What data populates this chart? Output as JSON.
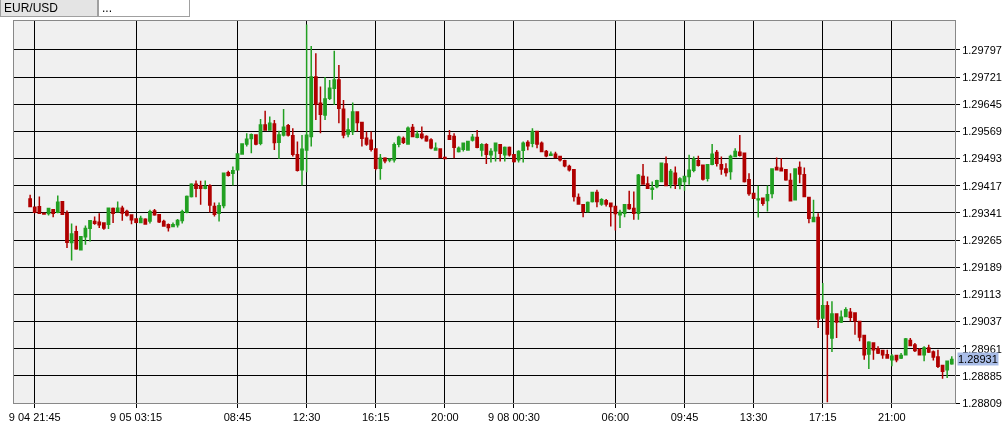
{
  "chart_data": {
    "type": "candlestick",
    "title": "EUR/USD",
    "subtitle": "...",
    "categories": [
      null,
      "9 04 21:45",
      null,
      null,
      null,
      null,
      null,
      null,
      null,
      null,
      null,
      null,
      null,
      null,
      null,
      null,
      null,
      null,
      null,
      null,
      null,
      null,
      null,
      "9 05 03:15",
      null,
      null,
      null,
      null,
      null,
      null,
      null,
      null,
      null,
      null,
      null,
      null,
      null,
      null,
      null,
      null,
      null,
      null,
      null,
      null,
      null,
      "08:45",
      null,
      null,
      null,
      null,
      null,
      null,
      null,
      null,
      null,
      null,
      null,
      null,
      null,
      null,
      "12:30",
      null,
      null,
      null,
      null,
      null,
      null,
      null,
      null,
      null,
      null,
      null,
      null,
      null,
      null,
      "16:15",
      null,
      null,
      null,
      null,
      null,
      null,
      null,
      null,
      null,
      null,
      null,
      null,
      null,
      null,
      "20:00",
      null,
      null,
      null,
      null,
      null,
      null,
      null,
      null,
      null,
      null,
      null,
      null,
      null,
      null,
      "9 08 00:30",
      null,
      null,
      null,
      null,
      null,
      null,
      null,
      null,
      null,
      null,
      null,
      null,
      null,
      null,
      null,
      null,
      null,
      null,
      null,
      null,
      null,
      "06:00",
      null,
      null,
      null,
      null,
      null,
      null,
      null,
      null,
      null,
      null,
      null,
      null,
      null,
      null,
      "09:45",
      null,
      null,
      null,
      null,
      null,
      null,
      null,
      null,
      null,
      null,
      null,
      null,
      null,
      null,
      "13:30",
      null,
      null,
      null,
      null,
      null,
      null,
      null,
      null,
      null,
      null,
      null,
      null,
      null,
      null,
      "17:15",
      null,
      null,
      null,
      null,
      null,
      null,
      null,
      null,
      null,
      null,
      null,
      null,
      null,
      null,
      "21:00",
      null,
      null,
      null,
      null,
      null,
      null,
      null,
      null,
      null,
      null,
      null,
      null,
      null
    ],
    "ohlc": [
      [
        1.2938,
        1.29392,
        1.29357,
        1.29359
      ],
      [
        1.29357,
        1.29357,
        1.2934,
        1.29343
      ],
      [
        1.29358,
        1.29387,
        1.2934,
        1.2934
      ],
      [
        1.2934,
        1.2934,
        1.29338,
        1.29338
      ],
      [
        1.29339,
        1.29354,
        1.29334,
        1.29353
      ],
      [
        1.2935,
        1.29352,
        1.29329,
        1.2934
      ],
      [
        1.29343,
        1.2939,
        1.2934,
        1.29371
      ],
      [
        1.29372,
        1.29372,
        1.29335,
        1.29337
      ],
      [
        1.2934,
        1.29348,
        1.29243,
        1.29259
      ],
      [
        1.29258,
        1.29311,
        1.29208,
        1.29282
      ],
      [
        1.29288,
        1.29305,
        1.29238,
        1.29241
      ],
      [
        1.29238,
        1.29276,
        1.29236,
        1.29274
      ],
      [
        1.29274,
        1.29306,
        1.29252,
        1.29297
      ],
      [
        1.29298,
        1.29321,
        1.29261,
        1.29319
      ],
      [
        1.29317,
        1.29331,
        1.29308,
        1.29312
      ],
      [
        1.29315,
        1.2934,
        1.29299,
        1.29308
      ],
      [
        1.29313,
        1.29313,
        1.29294,
        1.29299
      ],
      [
        1.29309,
        1.29354,
        1.29296,
        1.29354
      ],
      [
        1.29353,
        1.29356,
        1.29313,
        1.2934
      ],
      [
        1.29344,
        1.29373,
        1.29342,
        1.29354
      ],
      [
        1.29354,
        1.29361,
        1.29319,
        1.29341
      ],
      [
        1.29345,
        1.2935,
        1.29331,
        1.29335
      ],
      [
        1.29335,
        1.29335,
        1.29309,
        1.29322
      ],
      [
        1.29324,
        1.29326,
        1.29312,
        1.29315
      ],
      [
        1.29314,
        1.29333,
        1.29312,
        1.29325
      ],
      [
        1.29323,
        1.29326,
        1.29308,
        1.2931
      ],
      [
        1.29318,
        1.2935,
        1.29311,
        1.29344
      ],
      [
        1.29346,
        1.29352,
        1.29333,
        1.29336
      ],
      [
        1.29336,
        1.29336,
        1.29313,
        1.29316
      ],
      [
        1.29317,
        1.29322,
        1.29303,
        1.29304
      ],
      [
        1.29308,
        1.29311,
        1.29289,
        1.293
      ],
      [
        1.29303,
        1.29314,
        1.29302,
        1.29308
      ],
      [
        1.29308,
        1.29324,
        1.293,
        1.2932
      ],
      [
        1.2932,
        1.2935,
        1.29311,
        1.29344
      ],
      [
        1.29343,
        1.2939,
        1.2934,
        1.29387
      ],
      [
        1.29387,
        1.29424,
        1.29384,
        1.29421
      ],
      [
        1.29421,
        1.29432,
        1.29385,
        1.2941
      ],
      [
        1.29417,
        1.29431,
        1.29364,
        1.2941
      ],
      [
        1.2941,
        1.29432,
        1.29407,
        1.29415
      ],
      [
        1.29417,
        1.29421,
        1.29342,
        1.29363
      ],
      [
        1.29359,
        1.2937,
        1.29331,
        1.29337
      ],
      [
        1.2934,
        1.2937,
        1.29317,
        1.29361
      ],
      [
        1.29362,
        1.29454,
        1.29354,
        1.29452
      ],
      [
        1.29453,
        1.29459,
        1.29443,
        1.29446
      ],
      [
        1.29452,
        1.29471,
        1.29418,
        1.29459
      ],
      [
        1.29462,
        1.29508,
        1.29462,
        1.29506
      ],
      [
        1.29506,
        1.29536,
        1.29504,
        1.29534
      ],
      [
        1.29534,
        1.29564,
        1.29527,
        1.29547
      ],
      [
        1.29549,
        1.29563,
        1.29508,
        1.2956
      ],
      [
        1.29559,
        1.29559,
        1.2953,
        1.29534
      ],
      [
        1.29536,
        1.29604,
        1.2953,
        1.29587
      ],
      [
        1.29587,
        1.29627,
        1.29571,
        1.29573
      ],
      [
        1.29573,
        1.29611,
        1.29571,
        1.29592
      ],
      [
        1.2959,
        1.29601,
        1.29517,
        1.29538
      ],
      [
        1.29539,
        1.29571,
        1.29492,
        1.29559
      ],
      [
        1.29559,
        1.29632,
        1.29555,
        1.29581
      ],
      [
        1.29585,
        1.2959,
        1.29555,
        1.29559
      ],
      [
        1.29557,
        1.29578,
        1.29499,
        1.29505
      ],
      [
        1.29504,
        1.29541,
        1.29457,
        1.2946
      ],
      [
        1.29462,
        1.29559,
        1.29418,
        1.29519
      ],
      [
        1.29517,
        1.29868,
        1.29455,
        1.29558
      ],
      [
        1.29555,
        1.29808,
        1.29527,
        1.29721
      ],
      [
        1.29721,
        1.29788,
        1.29601,
        1.29646
      ],
      [
        1.29648,
        1.29695,
        1.29564,
        1.29617
      ],
      [
        1.29615,
        1.29721,
        1.29601,
        1.2966
      ],
      [
        1.29662,
        1.29713,
        1.29657,
        1.2969
      ],
      [
        1.2969,
        1.29795,
        1.29643,
        1.29713
      ],
      [
        1.29713,
        1.29755,
        1.29592,
        1.29634
      ],
      [
        1.29631,
        1.29657,
        1.2955,
        1.29559
      ],
      [
        1.29562,
        1.29606,
        1.29553,
        1.29573
      ],
      [
        1.29569,
        1.2965,
        1.29559,
        1.29623
      ],
      [
        1.29623,
        1.29623,
        1.29569,
        1.29594
      ],
      [
        1.29594,
        1.29594,
        1.29527,
        1.2955
      ],
      [
        1.2955,
        1.29569,
        1.29529,
        1.29534
      ],
      [
        1.29544,
        1.29569,
        1.29513,
        1.29519
      ],
      [
        1.2952,
        1.2952,
        1.2946,
        1.29466
      ],
      [
        1.29466,
        1.29506,
        1.29434,
        1.29494
      ],
      [
        1.29494,
        1.29497,
        1.2948,
        1.29487
      ],
      [
        1.29489,
        1.29494,
        1.29483,
        1.29491
      ],
      [
        1.2949,
        1.29538,
        1.29482,
        1.29532
      ],
      [
        1.29533,
        1.29557,
        1.29525,
        1.29553
      ],
      [
        1.29549,
        1.29555,
        1.29534,
        1.29539
      ],
      [
        1.29534,
        1.29583,
        1.29532,
        1.29578
      ],
      [
        1.2958,
        1.2959,
        1.29553,
        1.29555
      ],
      [
        1.29553,
        1.29571,
        1.2955,
        1.29561
      ],
      [
        1.29561,
        1.29583,
        1.29547,
        1.29552
      ],
      [
        1.29555,
        1.29558,
        1.2954,
        1.29543
      ],
      [
        1.29545,
        1.2955,
        1.29519,
        1.29523
      ],
      [
        1.29517,
        1.29538,
        1.29516,
        1.29522
      ],
      [
        1.2952,
        1.2952,
        1.29494,
        1.29496
      ],
      [
        1.29496,
        1.29499,
        1.29491,
        1.29493
      ],
      [
        1.29557,
        1.29573,
        1.29545,
        1.29547
      ],
      [
        1.29555,
        1.29564,
        1.29494,
        1.29525
      ],
      [
        1.29513,
        1.29527,
        1.2951,
        1.29522
      ],
      [
        1.29519,
        1.29538,
        1.29513,
        1.29536
      ],
      [
        1.29517,
        1.29541,
        1.29516,
        1.29541
      ],
      [
        1.29545,
        1.29562,
        1.29541,
        1.29553
      ],
      [
        1.29552,
        1.29573,
        1.29522,
        1.29525
      ],
      [
        1.29517,
        1.29536,
        1.29499,
        1.29532
      ],
      [
        1.29532,
        1.29536,
        1.29478,
        1.29505
      ],
      [
        1.29504,
        1.29522,
        1.29482,
        1.29513
      ],
      [
        1.29515,
        1.29538,
        1.29485,
        1.29536
      ],
      [
        1.29532,
        1.29532,
        1.29485,
        1.29508
      ],
      [
        1.29504,
        1.29527,
        1.29485,
        1.29524
      ],
      [
        1.29524,
        1.29527,
        1.29499,
        1.29504
      ],
      [
        1.29504,
        1.29504,
        1.29482,
        1.29485
      ],
      [
        1.2949,
        1.29516,
        1.29482,
        1.29513
      ],
      [
        1.29516,
        1.29541,
        1.29482,
        1.29536
      ],
      [
        1.29538,
        1.29544,
        1.29516,
        1.29529
      ],
      [
        1.29536,
        1.29578,
        1.29525,
        1.29569
      ],
      [
        1.29569,
        1.29569,
        1.29522,
        1.29534
      ],
      [
        1.29536,
        1.29541,
        1.29511,
        1.29513
      ],
      [
        1.29513,
        1.29517,
        1.29497,
        1.29501
      ],
      [
        1.29502,
        1.29513,
        1.29501,
        1.29505
      ],
      [
        1.29505,
        1.29512,
        1.29494,
        1.29496
      ],
      [
        1.29499,
        1.29501,
        1.29485,
        1.2949
      ],
      [
        1.29487,
        1.2949,
        1.29469,
        1.29473
      ],
      [
        1.29471,
        1.29476,
        1.29457,
        1.29462
      ],
      [
        1.29462,
        1.29462,
        1.29373,
        1.29387
      ],
      [
        1.29384,
        1.29395,
        1.29364,
        1.29366
      ],
      [
        1.29364,
        1.29364,
        1.29329,
        1.29345
      ],
      [
        1.29345,
        1.29373,
        1.29342,
        1.2937
      ],
      [
        1.29373,
        1.29398,
        1.2937,
        1.29398
      ],
      [
        1.29398,
        1.29406,
        1.29357,
        1.29373
      ],
      [
        1.29366,
        1.29382,
        1.29361,
        1.29378
      ],
      [
        1.29375,
        1.2938,
        1.29359,
        1.29366
      ],
      [
        1.29368,
        1.2937,
        1.29303,
        1.29359
      ],
      [
        1.29359,
        1.29359,
        1.29292,
        1.29339
      ],
      [
        1.29336,
        1.2935,
        1.29299,
        1.29342
      ],
      [
        1.2934,
        1.29364,
        1.29329,
        1.29364
      ],
      [
        1.29364,
        1.29403,
        1.2935,
        1.29353
      ],
      [
        1.29353,
        1.29401,
        1.29322,
        1.2934
      ],
      [
        1.2934,
        1.2945,
        1.29322,
        1.29446
      ],
      [
        1.29443,
        1.29478,
        1.2942,
        1.29422
      ],
      [
        1.29422,
        1.29443,
        1.29408,
        1.2941
      ],
      [
        1.29407,
        1.29429,
        1.29378,
        1.2941
      ],
      [
        1.29415,
        1.29434,
        1.2941,
        1.29431
      ],
      [
        1.29429,
        1.29482,
        1.29427,
        1.2948
      ],
      [
        1.29478,
        1.29499,
        1.29418,
        1.29418
      ],
      [
        1.29422,
        1.29464,
        1.2941,
        1.29457
      ],
      [
        1.29452,
        1.29471,
        1.29408,
        1.29422
      ],
      [
        1.29421,
        1.29441,
        1.29407,
        1.29436
      ],
      [
        1.29429,
        1.29445,
        1.29403,
        1.29443
      ],
      [
        1.29443,
        1.29504,
        1.2942,
        1.2946
      ],
      [
        1.2946,
        1.29499,
        1.29455,
        1.29491
      ],
      [
        1.29487,
        1.29501,
        1.29471,
        1.29474
      ],
      [
        1.29474,
        1.29474,
        1.29432,
        1.29436
      ],
      [
        1.29438,
        1.29477,
        1.29429,
        1.29476
      ],
      [
        1.29477,
        1.29534,
        1.29474,
        1.29505
      ],
      [
        1.2951,
        1.29517,
        1.29471,
        1.2948
      ],
      [
        1.29476,
        1.29499,
        1.29448,
        1.29464
      ],
      [
        1.29464,
        1.2948,
        1.29443,
        1.29454
      ],
      [
        1.29457,
        1.29504,
        1.29434,
        1.29499
      ],
      [
        1.29499,
        1.29522,
        1.29497,
        1.29513
      ],
      [
        1.29511,
        1.29559,
        1.29499,
        1.29502
      ],
      [
        1.29508,
        1.29508,
        1.29426,
        1.29429
      ],
      [
        1.29434,
        1.29452,
        1.29389,
        1.29395
      ],
      [
        1.29395,
        1.29396,
        1.2938,
        1.29382
      ],
      [
        1.29378,
        1.29417,
        1.29328,
        1.2938
      ],
      [
        1.29382,
        1.29382,
        1.29361,
        1.29368
      ],
      [
        1.29376,
        1.29418,
        1.29345,
        1.29392
      ],
      [
        1.29395,
        1.29464,
        1.29382,
        1.29464
      ],
      [
        1.29468,
        1.29496,
        1.2946,
        1.29462
      ],
      [
        1.29466,
        1.29494,
        1.29457,
        1.29459
      ],
      [
        1.29462,
        1.29462,
        1.29431,
        1.29434
      ],
      [
        1.29432,
        1.29452,
        1.29373,
        1.29375
      ],
      [
        1.29378,
        1.29464,
        1.29376,
        1.29464
      ],
      [
        1.29468,
        1.29485,
        1.29424,
        1.2945
      ],
      [
        1.29448,
        1.29468,
        1.29387,
        1.29387
      ],
      [
        1.29384,
        1.29384,
        1.29312,
        1.29326
      ],
      [
        1.29317,
        1.29378,
        1.29317,
        1.29328
      ],
      [
        1.29328,
        1.2934,
        1.29019,
        1.29044
      ],
      [
        1.29047,
        1.29145,
        1.29047,
        1.29081
      ],
      [
        1.29081,
        1.29094,
        1.28811,
        1.29002
      ],
      [
        1.28991,
        1.29094,
        1.28952,
        1.29058
      ],
      [
        1.29058,
        1.29058,
        1.28991,
        1.29036
      ],
      [
        1.29036,
        1.29068,
        1.29033,
        1.29049
      ],
      [
        1.29051,
        1.29077,
        1.2905,
        1.2907
      ],
      [
        1.29063,
        1.29075,
        1.29037,
        1.29049
      ],
      [
        1.29061,
        1.29061,
        1.29,
        1.29039
      ],
      [
        1.29037,
        1.29037,
        1.28982,
        1.28994
      ],
      [
        1.28998,
        1.28998,
        1.2893,
        1.28944
      ],
      [
        1.28946,
        1.28982,
        1.28904,
        1.28979
      ],
      [
        1.28977,
        1.28979,
        1.2893,
        1.28958
      ],
      [
        1.2896,
        1.28968,
        1.28946,
        1.28949
      ],
      [
        1.28956,
        1.28958,
        1.28933,
        1.28944
      ],
      [
        1.28944,
        1.28958,
        1.28933,
        1.28935
      ],
      [
        1.2893,
        1.28946,
        1.28912,
        1.2894
      ],
      [
        1.28942,
        1.28944,
        1.28923,
        1.2893
      ],
      [
        1.28935,
        1.28949,
        1.28932,
        1.28942
      ],
      [
        1.28944,
        1.28991,
        1.28943,
        1.28988
      ],
      [
        1.28984,
        1.28991,
        1.28968,
        1.2897
      ],
      [
        1.28971,
        1.28977,
        1.28952,
        1.28956
      ],
      [
        1.28958,
        1.28963,
        1.28942,
        1.28944
      ],
      [
        1.28944,
        1.28968,
        1.28926,
        1.28963
      ],
      [
        1.28963,
        1.28972,
        1.28949,
        1.28952
      ],
      [
        1.28952,
        1.28956,
        1.28928,
        1.28938
      ],
      [
        1.28938,
        1.28958,
        1.28907,
        1.28912
      ],
      [
        1.28914,
        1.28916,
        1.28877,
        1.28898
      ],
      [
        1.28902,
        1.28928,
        1.28879,
        1.28926
      ],
      [
        1.28919,
        1.2894,
        1.28916,
        1.28931
      ]
    ],
    "colors": [
      "#b00000",
      "#b00000",
      "#b00000",
      "#b00000",
      "#22a022",
      "#b00000",
      "#22a022",
      "#b00000",
      "#b00000",
      "#22a022",
      "#b00000",
      "#22a022",
      "#22a022",
      "#22a022",
      "#b00000",
      "#b00000",
      "#b00000",
      "#22a022",
      "#b00000",
      "#22a022",
      "#b00000",
      "#b00000",
      "#b00000",
      "#b00000",
      "#22a022",
      "#b00000",
      "#22a022",
      "#b00000",
      "#b00000",
      "#b00000",
      "#b00000",
      "#22a022",
      "#22a022",
      "#22a022",
      "#22a022",
      "#22a022",
      "#b00000",
      "#b00000",
      "#22a022",
      "#b00000",
      "#b00000",
      "#22a022",
      "#22a022",
      "#b00000",
      "#22a022",
      "#22a022",
      "#22a022",
      "#22a022",
      "#22a022",
      "#b00000",
      "#22a022",
      "#b00000",
      "#22a022",
      "#b00000",
      "#22a022",
      "#22a022",
      "#b00000",
      "#b00000",
      "#b00000",
      "#22a022",
      "#22a022",
      "#22a022",
      "#b00000",
      "#b00000",
      "#22a022",
      "#22a022",
      "#22a022",
      "#b00000",
      "#b00000",
      "#22a022",
      "#22a022",
      "#b00000",
      "#b00000",
      "#b00000",
      "#b00000",
      "#b00000",
      "#22a022",
      "#b00000",
      "#22a022",
      "#22a022",
      "#22a022",
      "#b00000",
      "#22a022",
      "#b00000",
      "#22a022",
      "#b00000",
      "#b00000",
      "#b00000",
      "#22a022",
      "#b00000",
      "#b00000",
      "#b00000",
      "#b00000",
      "#22a022",
      "#22a022",
      "#22a022",
      "#22a022",
      "#b00000",
      "#22a022",
      "#b00000",
      "#22a022",
      "#22a022",
      "#b00000",
      "#22a022",
      "#b00000",
      "#b00000",
      "#22a022",
      "#22a022",
      "#b00000",
      "#22a022",
      "#b00000",
      "#b00000",
      "#b00000",
      "#22a022",
      "#b00000",
      "#b00000",
      "#b00000",
      "#b00000",
      "#b00000",
      "#b00000",
      "#b00000",
      "#22a022",
      "#22a022",
      "#b00000",
      "#22a022",
      "#b00000",
      "#b00000",
      "#b00000",
      "#22a022",
      "#22a022",
      "#b00000",
      "#b00000",
      "#22a022",
      "#b00000",
      "#b00000",
      "#22a022",
      "#22a022",
      "#22a022",
      "#b00000",
      "#22a022",
      "#b00000",
      "#22a022",
      "#22a022",
      "#22a022",
      "#22a022",
      "#b00000",
      "#b00000",
      "#22a022",
      "#22a022",
      "#b00000",
      "#b00000",
      "#b00000",
      "#22a022",
      "#22a022",
      "#b00000",
      "#b00000",
      "#b00000",
      "#b00000",
      "#22a022",
      "#b00000",
      "#22a022",
      "#22a022",
      "#b00000",
      "#b00000",
      "#b00000",
      "#b00000",
      "#22a022",
      "#b00000",
      "#b00000",
      "#b00000",
      "#22a022",
      "#b00000",
      "#22a022",
      "#b00000",
      "#22a022",
      "#b00000",
      "#22a022",
      "#22a022",
      "#b00000",
      "#b00000",
      "#b00000",
      "#b00000",
      "#22a022",
      "#b00000",
      "#b00000",
      "#b00000",
      "#b00000",
      "#22a022",
      "#b00000",
      "#22a022",
      "#22a022",
      "#b00000",
      "#b00000",
      "#b00000",
      "#22a022",
      "#b00000",
      "#b00000",
      "#b00000",
      "#b00000",
      "#22a022",
      "#22a022"
    ],
    "ylim": [
      1.28809,
      1.29878
    ],
    "yticks": [
      1.29797,
      1.29721,
      1.29645,
      1.29569,
      1.29493,
      1.29417,
      1.29341,
      1.29265,
      1.29189,
      1.29113,
      1.29037,
      1.28961,
      1.28885,
      1.28809
    ],
    "grid": true,
    "annotations": [
      "1.28931"
    ]
  }
}
